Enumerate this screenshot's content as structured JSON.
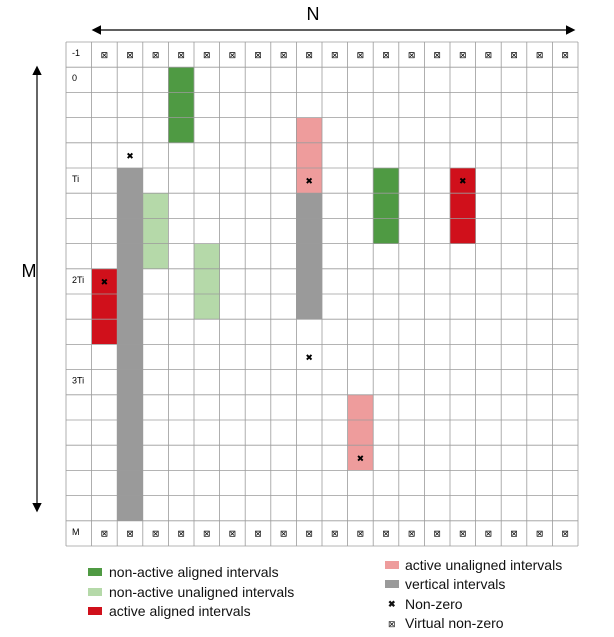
{
  "labels": {
    "n": "N",
    "m": "M"
  },
  "row_labels": [
    "-1",
    "0",
    "Ti",
    "2Ti",
    "3Ti",
    "M"
  ],
  "colors": {
    "nonactive_aligned": "#4f9a43",
    "nonactive_unaligned": "#b5d9a9",
    "active_aligned": "#d0101b",
    "active_unaligned": "#ee9c9c",
    "vertical": "#9a9a9a",
    "grid": "#9b9b9b"
  },
  "intervals": [
    {
      "type": "nonactive_aligned",
      "column": 4,
      "row_start": 1,
      "row_end": 4
    },
    {
      "type": "nonactive_aligned",
      "column": 12,
      "row_start": 5,
      "row_end": 8
    },
    {
      "type": "nonactive_unaligned",
      "column": 3,
      "row_start": 6,
      "row_end": 9
    },
    {
      "type": "nonactive_unaligned",
      "column": 5,
      "row_start": 8,
      "row_end": 11
    },
    {
      "type": "active_aligned",
      "column": 1,
      "row_start": 9,
      "row_end": 12
    },
    {
      "type": "active_aligned",
      "column": 15,
      "row_start": 5,
      "row_end": 8
    },
    {
      "type": "active_unaligned",
      "column": 9,
      "row_start": 3,
      "row_end": 6
    },
    {
      "type": "active_unaligned",
      "column": 11,
      "row_start": 14,
      "row_end": 17
    },
    {
      "type": "vertical",
      "column": 2,
      "row_start": 5,
      "row_end": 19
    },
    {
      "type": "vertical",
      "column": 9,
      "row_start": 6,
      "row_end": 11
    }
  ],
  "nonzeros": [
    {
      "column": 2,
      "row": 4
    },
    {
      "column": 9,
      "row": 5
    },
    {
      "column": 9,
      "row": 12
    },
    {
      "column": 1,
      "row": 9
    },
    {
      "column": 15,
      "row": 5
    },
    {
      "column": 11,
      "row": 16
    }
  ],
  "virtual_nonzero_rows": [
    "-1",
    "M"
  ],
  "legend": {
    "nonactive_aligned": "non-active aligned intervals",
    "nonactive_unaligned": "non-active unaligned intervals",
    "active_aligned": "active aligned intervals",
    "active_unaligned": "active unaligned intervals",
    "vertical": "vertical intervals",
    "nonzero": "Non-zero",
    "virtual_nonzero": "Virtual non-zero",
    "nonzero_symbol": "✖",
    "virtual_symbol": "⊠"
  }
}
